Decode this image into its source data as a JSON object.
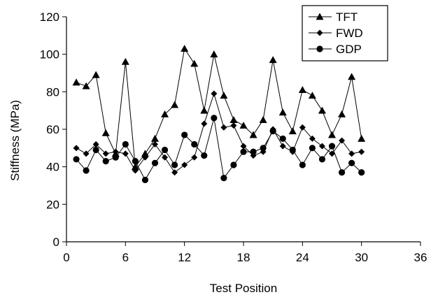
{
  "chart_data": {
    "type": "line",
    "title": "",
    "xlabel": "Test Position",
    "ylabel": "Stiffness (MPa)",
    "xlim": [
      0,
      36
    ],
    "ylim": [
      0,
      120
    ],
    "x_ticks": [
      0,
      6,
      12,
      18,
      24,
      30,
      36
    ],
    "y_ticks": [
      0,
      20,
      40,
      60,
      80,
      100,
      120
    ],
    "grid": false,
    "legend_position": "top-right",
    "x": [
      1,
      2,
      3,
      4,
      5,
      6,
      7,
      8,
      9,
      10,
      11,
      12,
      13,
      14,
      15,
      16,
      17,
      18,
      19,
      20,
      21,
      22,
      23,
      24,
      25,
      26,
      27,
      28,
      29,
      30
    ],
    "series": [
      {
        "name": "TFT",
        "marker": "triangle",
        "values": [
          85,
          83,
          89,
          58,
          47,
          96,
          40,
          47,
          55,
          68,
          73,
          103,
          95,
          70,
          100,
          78,
          65,
          62,
          57,
          65,
          97,
          69,
          59,
          81,
          78,
          70,
          57,
          68,
          88,
          55
        ]
      },
      {
        "name": "FWD",
        "marker": "diamond",
        "values": [
          50,
          47,
          52,
          47,
          48,
          47,
          38,
          45,
          52,
          45,
          37,
          41,
          45,
          63,
          79,
          61,
          62,
          51,
          46,
          48,
          60,
          51,
          48,
          61,
          55,
          51,
          47,
          54,
          47,
          48
        ]
      },
      {
        "name": "GDP",
        "marker": "circle",
        "values": [
          44,
          38,
          49,
          43,
          45,
          52,
          43,
          33,
          42,
          49,
          41,
          57,
          52,
          46,
          66,
          34,
          41,
          48,
          48,
          50,
          59,
          55,
          49,
          41,
          50,
          44,
          51,
          37,
          42,
          37
        ]
      }
    ]
  }
}
